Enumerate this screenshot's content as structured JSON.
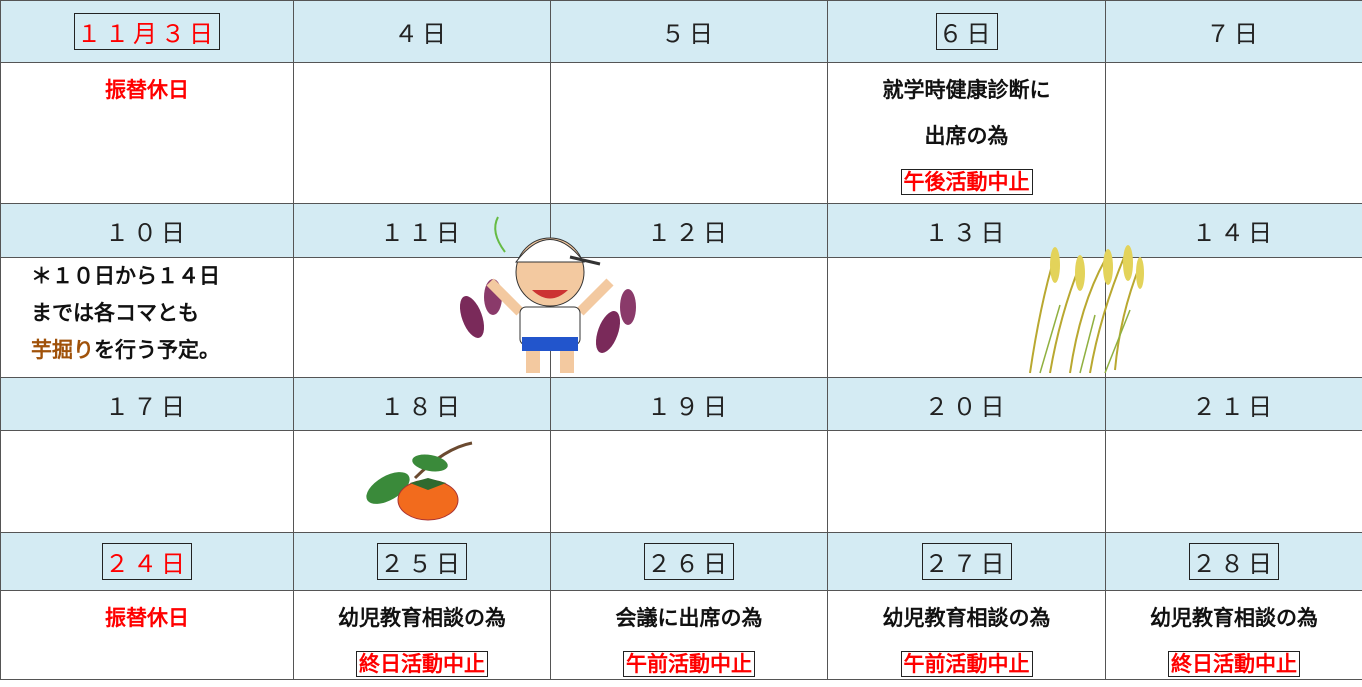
{
  "weeks": [
    {
      "days": [
        {
          "date": "１１月３日",
          "date_color": "#ff0000",
          "boxed": true,
          "notes": [
            [
              {
                "text": "振替休日",
                "color": "#ff0000"
              }
            ]
          ]
        },
        {
          "date": "４日",
          "notes": []
        },
        {
          "date": "５日",
          "notes": []
        },
        {
          "date": "６日",
          "boxed": true,
          "notes": [
            [
              {
                "text": "就学時健康診断に"
              }
            ],
            [
              {
                "text": "出席の為"
              }
            ],
            [
              {
                "text": "午後活動中止",
                "color": "#ff0000",
                "boxed": true
              }
            ]
          ]
        },
        {
          "date": "７日",
          "notes": []
        }
      ]
    },
    {
      "days": [
        {
          "date": "１０日",
          "notes": [
            [
              {
                "text": "＊１０日から１４日"
              }
            ],
            [
              {
                "text": "までは各コマとも"
              }
            ],
            [
              {
                "text": "芋掘り",
                "color": "#a0520a"
              },
              {
                "text": "を行う予定。"
              }
            ]
          ]
        },
        {
          "date": "１１日",
          "notes": []
        },
        {
          "date": "１２日",
          "notes": []
        },
        {
          "date": "１３日",
          "notes": []
        },
        {
          "date": "１４日",
          "notes": []
        }
      ]
    },
    {
      "days": [
        {
          "date": "１７日",
          "notes": []
        },
        {
          "date": "１８日",
          "notes": []
        },
        {
          "date": "１９日",
          "notes": []
        },
        {
          "date": "２０日",
          "notes": []
        },
        {
          "date": "２１日",
          "notes": []
        }
      ]
    },
    {
      "days": [
        {
          "date": "２４日",
          "date_color": "#ff0000",
          "boxed": true,
          "notes": [
            [
              {
                "text": "振替休日",
                "color": "#ff0000"
              }
            ]
          ]
        },
        {
          "date": "２５日",
          "boxed": true,
          "notes": [
            [
              {
                "text": "幼児教育相談の為"
              }
            ],
            [
              {
                "text": "終日活動中止",
                "color": "#ff0000",
                "boxed": true
              }
            ]
          ]
        },
        {
          "date": "２６日",
          "boxed": true,
          "notes": [
            [
              {
                "text": "会議に出席の為"
              }
            ],
            [
              {
                "text": "午前活動中止",
                "color": "#ff0000",
                "boxed": true
              }
            ]
          ]
        },
        {
          "date": "２７日",
          "boxed": true,
          "notes": [
            [
              {
                "text": "幼児教育相談の為"
              }
            ],
            [
              {
                "text": "午前活動中止",
                "color": "#ff0000",
                "boxed": true
              }
            ]
          ]
        },
        {
          "date": "２８日",
          "boxed": true,
          "notes": [
            [
              {
                "text": "幼児教育相談の為"
              }
            ],
            [
              {
                "text": "終日活動中止",
                "color": "#ff0000",
                "boxed": true
              }
            ]
          ]
        }
      ]
    }
  ]
}
